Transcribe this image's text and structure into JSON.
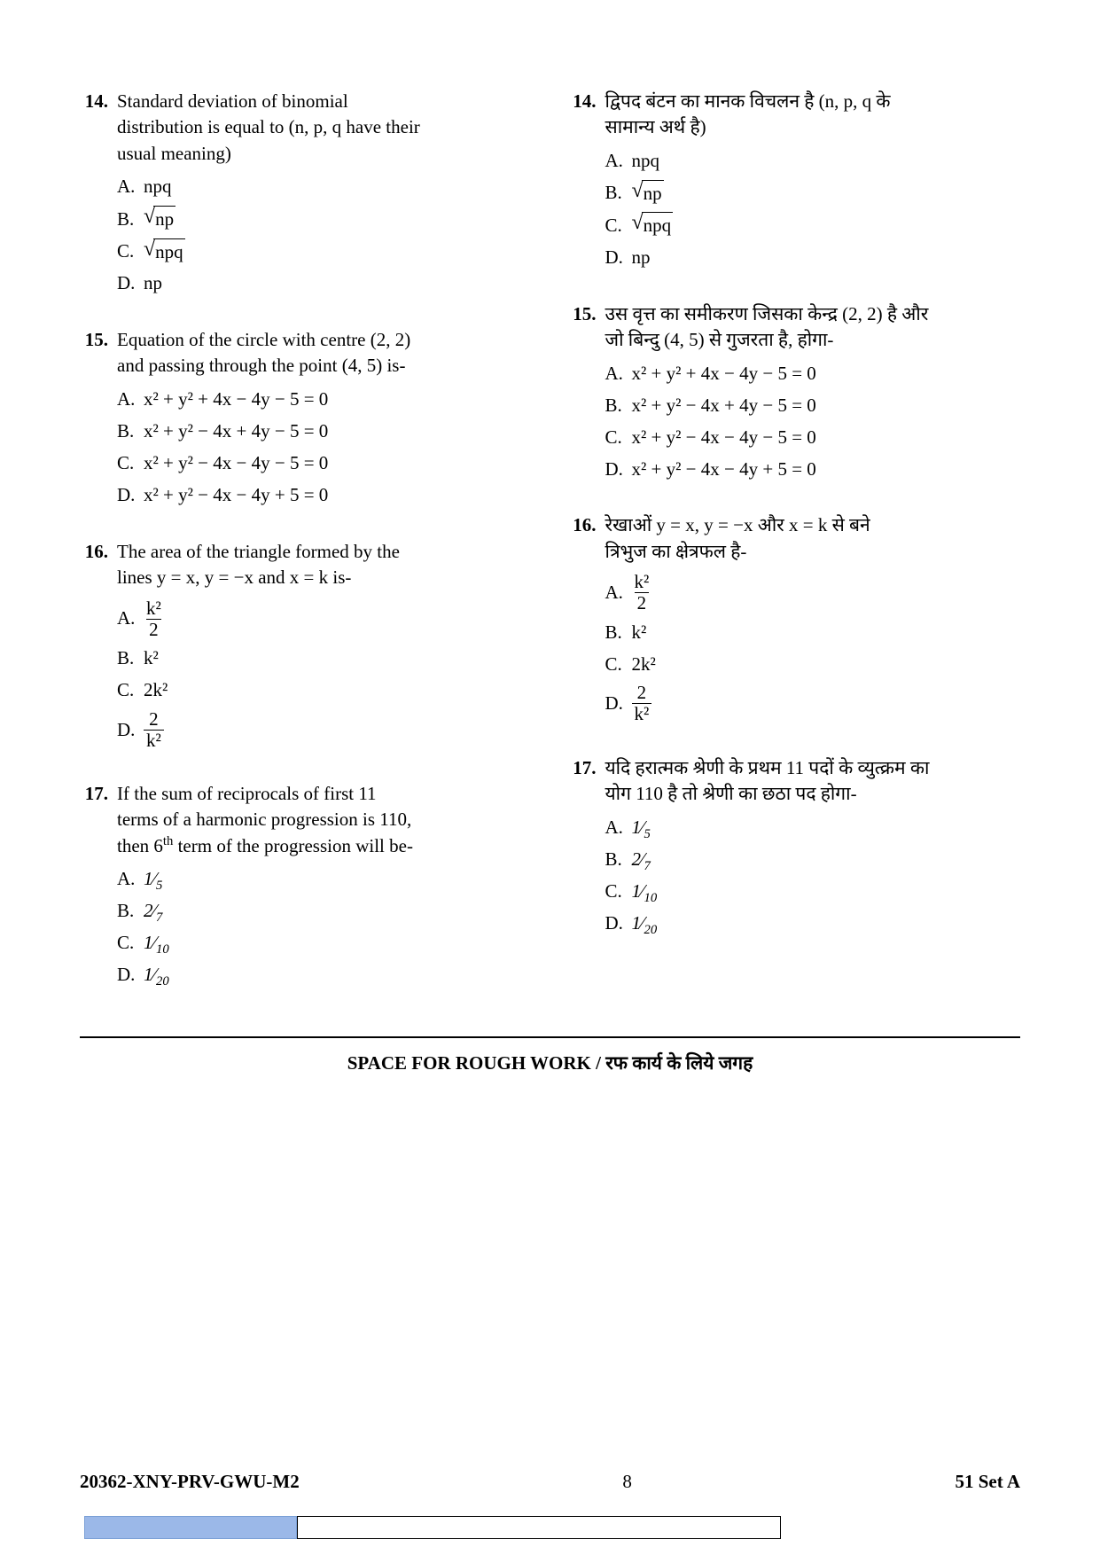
{
  "colors": {
    "text": "#000000",
    "background": "#ffffff",
    "bottom_blue": "#9bb8e8",
    "bottom_blue_border": "#7a9fd6"
  },
  "left": {
    "q14": {
      "num": "14.",
      "text_l1": "Standard deviation of binomial",
      "text_l2": "distribution is equal to (n, p, q have their",
      "text_l3": "usual meaning)",
      "A": "A.",
      "A_val": "npq",
      "B": "B.",
      "B_val": "np",
      "C": "C.",
      "C_val": "npq",
      "D": "D.",
      "D_val": "np"
    },
    "q15": {
      "num": "15.",
      "text_l1": "Equation of the circle with centre (2, 2)",
      "text_l2": "and passing through the point (4, 5) is-",
      "A": "A.",
      "A_eq": "x² + y² + 4x − 4y − 5 = 0",
      "B": "B.",
      "B_eq": "x² + y² − 4x + 4y − 5 = 0",
      "C": "C.",
      "C_eq": "x² + y² − 4x − 4y − 5 = 0",
      "D": "D.",
      "D_eq": "x² + y² − 4x − 4y + 5 = 0"
    },
    "q16": {
      "num": "16.",
      "text_l1": "The area of the triangle formed by the",
      "text_l2": "lines  y = x, y = −x  and  x = k  is-",
      "A": "A.",
      "A_num": "k²",
      "A_den": "2",
      "B": "B.",
      "B_val": "k²",
      "C": "C.",
      "C_val": "2k²",
      "D": "D.",
      "D_num": "2",
      "D_den": "k²"
    },
    "q17": {
      "num": "17.",
      "text_l1": "If the sum of reciprocals of first 11",
      "text_l2": "terms of a harmonic progression is 110,",
      "text_l3_a": "then 6",
      "text_l3_sup": "th",
      "text_l3_b": " term of the progression will be-",
      "A": "A.",
      "A_n": "1",
      "A_d": "5",
      "B": "B.",
      "B_n": "2",
      "B_d": "7",
      "C": "C.",
      "C_n": "1",
      "C_d": "10",
      "D": "D.",
      "D_n": "1",
      "D_d": "20"
    }
  },
  "right": {
    "q14": {
      "num": "14.",
      "text_l1": "द्विपद बंटन का मानक विचलन है (n, p, q के",
      "text_l2": "सामान्य अर्थ है)",
      "A": "A.",
      "A_val": "npq",
      "B": "B.",
      "B_val": "np",
      "C": "C.",
      "C_val": "npq",
      "D": "D.",
      "D_val": "np"
    },
    "q15": {
      "num": "15.",
      "text_l1": "उस वृत्त का समीकरण जिसका केन्द्र (2, 2) है और",
      "text_l2": "जो बिन्दु (4, 5) से गुजरता है, होगा-",
      "A": "A.",
      "A_eq": "x² + y² + 4x − 4y − 5 = 0",
      "B": "B.",
      "B_eq": "x² + y² − 4x + 4y − 5 = 0",
      "C": "C.",
      "C_eq": "x² + y² − 4x − 4y − 5 = 0",
      "D": "D.",
      "D_eq": "x² + y² − 4x − 4y + 5 = 0"
    },
    "q16": {
      "num": "16.",
      "text_l1": "रेखाओं  y = x, y = −x  और  x = k  से बने",
      "text_l2": "त्रिभुज का क्षेत्रफल है-",
      "A": "A.",
      "A_num": "k²",
      "A_den": "2",
      "B": "B.",
      "B_val": "k²",
      "C": "C.",
      "C_val": "2k²",
      "D": "D.",
      "D_num": "2",
      "D_den": "k²"
    },
    "q17": {
      "num": "17.",
      "text_l1": "यदि हरात्मक श्रेणी के प्रथम 11 पदों के व्युत्क्रम का",
      "text_l2": "योग 110 है तो श्रेणी का छठा पद होगा-",
      "A": "A.",
      "A_n": "1",
      "A_d": "5",
      "B": "B.",
      "B_n": "2",
      "B_d": "7",
      "C": "C.",
      "C_n": "1",
      "C_d": "10",
      "D": "D.",
      "D_n": "1",
      "D_d": "20"
    }
  },
  "rough": "SPACE FOR ROUGH WORK / रफ कार्य के लिये जगह",
  "footer": {
    "code": "20362-XNY-PRV-GWU-M2",
    "page": "8",
    "set": "51  Set A"
  }
}
